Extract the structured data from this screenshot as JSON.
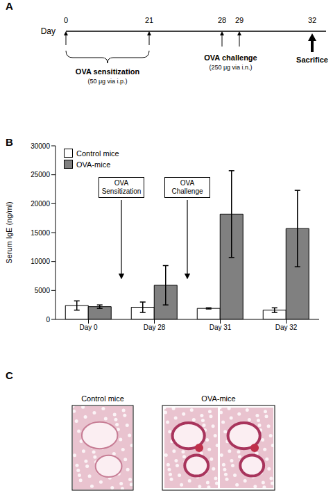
{
  "panel_labels": [
    "A",
    "B",
    "C"
  ],
  "timeline": {
    "axis_label": "Day",
    "ticks": [
      0,
      21,
      28,
      29,
      32
    ],
    "phases": [
      {
        "label": "OVA sensitization",
        "detail": "(50 μg via i.p.)",
        "from": 0,
        "to": 21
      },
      {
        "label": "OVA challenge",
        "detail": "(250 μg via i.n.)",
        "days": [
          28,
          29
        ]
      },
      {
        "label": "Sacrifice",
        "days": [
          32
        ]
      }
    ]
  },
  "chart_data": {
    "type": "bar",
    "categories": [
      "Day 0",
      "Day 28",
      "Day 31",
      "Day 32"
    ],
    "series": [
      {
        "name": "Control mice",
        "color": "#ffffff",
        "values": [
          2400,
          2100,
          1900,
          1600
        ],
        "errors": [
          800,
          900,
          100,
          400
        ]
      },
      {
        "name": "OVA-mice",
        "color": "#808080",
        "values": [
          2200,
          5900,
          18200,
          15700
        ],
        "errors": [
          300,
          3400,
          7500,
          6600
        ]
      }
    ],
    "y_label": "Serum IgE (ng/ml)",
    "ylim": [
      0,
      30000
    ],
    "yticks": [
      0,
      5000,
      10000,
      15000,
      20000,
      25000,
      30000
    ],
    "grid": false,
    "legend": "top-left",
    "annotations": [
      {
        "text": "OVA Sensitization",
        "between": [
          "Day 0",
          "Day 28"
        ]
      },
      {
        "text": "OVA Challenge",
        "between": [
          "Day 28",
          "Day 31"
        ]
      }
    ]
  },
  "histology": {
    "groups": [
      {
        "label": "Control mice"
      },
      {
        "label": "OVA-mice"
      }
    ]
  }
}
